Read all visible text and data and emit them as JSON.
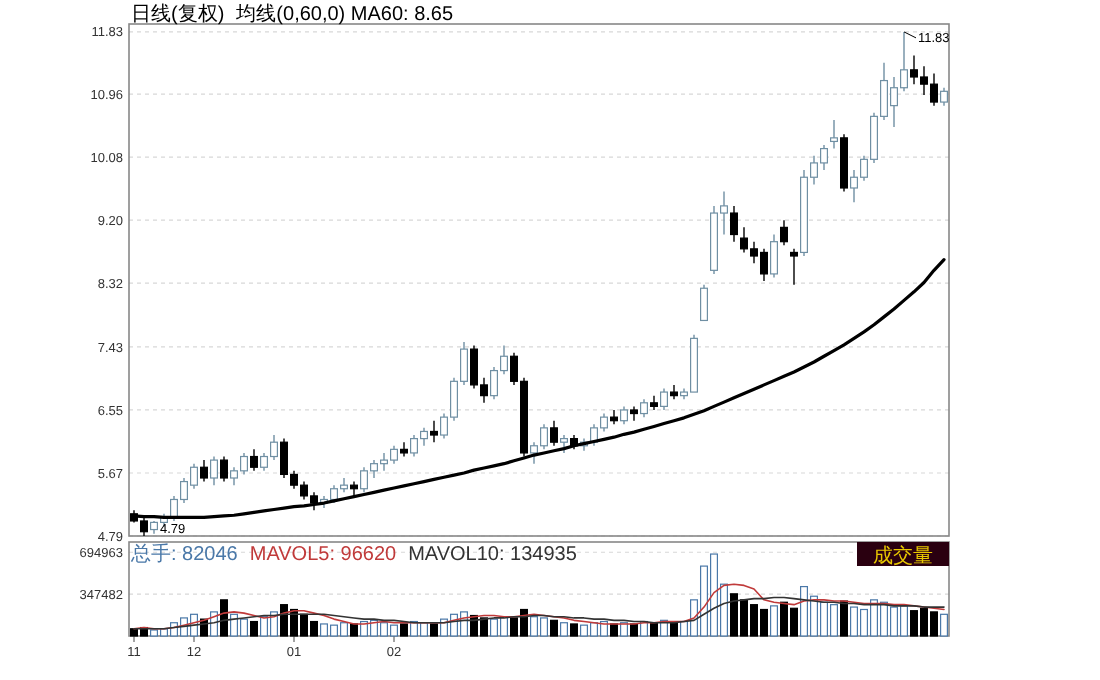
{
  "chart_data": [
    {
      "type": "candlestick",
      "title": "日线(复权)",
      "legend": "top left",
      "grid": "y",
      "tick_labels": "y",
      "categories": [
        null,
        null,
        null,
        null,
        null,
        null,
        null,
        null,
        null,
        null,
        null,
        null,
        null,
        null,
        null,
        null,
        null,
        null,
        null,
        null,
        null,
        null,
        null,
        null,
        null,
        null,
        null,
        null,
        null,
        null,
        null,
        null,
        null,
        null,
        null,
        null,
        null,
        null,
        null,
        null,
        null,
        null,
        null,
        null,
        null,
        null,
        null,
        null,
        null,
        null,
        null,
        null,
        null,
        null,
        null,
        null,
        null,
        null,
        null,
        null,
        null,
        null,
        null,
        null,
        null,
        null,
        null,
        null,
        null,
        null,
        null,
        null,
        null,
        null,
        null,
        null,
        null,
        null,
        null,
        null,
        null,
        null
      ],
      "ylim": [
        4.79,
        11.94
      ],
      "yticks": [
        4.79,
        5.67,
        6.55,
        7.43,
        8.32,
        {
          "value": 9.2,
          "label": "9.20"
        },
        10.08,
        10.96,
        11.83
      ],
      "ohlc": [
        [
          5.1,
          5.15,
          4.98,
          5.0
        ],
        [
          5.0,
          5.05,
          4.79,
          4.85
        ],
        [
          4.88,
          5.0,
          4.82,
          4.98
        ],
        [
          4.98,
          5.1,
          4.92,
          5.05
        ],
        [
          5.05,
          5.35,
          5.0,
          5.3
        ],
        [
          5.3,
          5.6,
          5.25,
          5.55
        ],
        [
          5.5,
          5.8,
          5.45,
          5.75
        ],
        [
          5.75,
          5.85,
          5.55,
          5.6
        ],
        [
          5.6,
          5.9,
          5.5,
          5.85
        ],
        [
          5.85,
          5.9,
          5.55,
          5.6
        ],
        [
          5.6,
          5.75,
          5.5,
          5.7
        ],
        [
          5.7,
          5.95,
          5.65,
          5.9
        ],
        [
          5.9,
          6.0,
          5.7,
          5.75
        ],
        [
          5.75,
          5.95,
          5.7,
          5.9
        ],
        [
          5.9,
          6.2,
          5.85,
          6.1
        ],
        [
          6.1,
          6.15,
          5.6,
          5.65
        ],
        [
          5.65,
          5.7,
          5.45,
          5.5
        ],
        [
          5.5,
          5.55,
          5.3,
          5.35
        ],
        [
          5.35,
          5.4,
          5.15,
          5.25
        ],
        [
          5.25,
          5.35,
          5.18,
          5.3
        ],
        [
          5.3,
          5.5,
          5.25,
          5.45
        ],
        [
          5.45,
          5.6,
          5.4,
          5.5
        ],
        [
          5.5,
          5.55,
          5.35,
          5.45
        ],
        [
          5.45,
          5.75,
          5.4,
          5.7
        ],
        [
          5.7,
          5.85,
          5.6,
          5.8
        ],
        [
          5.8,
          5.95,
          5.7,
          5.85
        ],
        [
          5.85,
          6.05,
          5.8,
          6.0
        ],
        [
          6.0,
          6.1,
          5.9,
          5.95
        ],
        [
          5.95,
          6.2,
          5.9,
          6.15
        ],
        [
          6.15,
          6.3,
          6.05,
          6.25
        ],
        [
          6.25,
          6.4,
          6.1,
          6.2
        ],
        [
          6.2,
          6.5,
          6.15,
          6.45
        ],
        [
          6.45,
          7.0,
          6.4,
          6.95
        ],
        [
          6.95,
          7.5,
          6.9,
          7.4
        ],
        [
          7.4,
          7.45,
          6.85,
          6.9
        ],
        [
          6.9,
          7.0,
          6.65,
          6.75
        ],
        [
          6.75,
          7.15,
          6.7,
          7.1
        ],
        [
          7.1,
          7.45,
          7.05,
          7.3
        ],
        [
          7.3,
          7.35,
          6.9,
          6.95
        ],
        [
          6.95,
          7.0,
          5.9,
          5.95
        ],
        [
          5.95,
          6.1,
          5.8,
          6.05
        ],
        [
          6.05,
          6.35,
          6.0,
          6.3
        ],
        [
          6.3,
          6.4,
          6.05,
          6.1
        ],
        [
          6.1,
          6.2,
          5.95,
          6.15
        ],
        [
          6.15,
          6.2,
          6.0,
          6.05
        ],
        [
          6.05,
          6.15,
          5.98,
          6.1
        ],
        [
          6.1,
          6.35,
          6.05,
          6.3
        ],
        [
          6.3,
          6.5,
          6.25,
          6.45
        ],
        [
          6.45,
          6.55,
          6.35,
          6.4
        ],
        [
          6.4,
          6.6,
          6.35,
          6.55
        ],
        [
          6.55,
          6.6,
          6.4,
          6.5
        ],
        [
          6.5,
          6.7,
          6.45,
          6.65
        ],
        [
          6.65,
          6.75,
          6.55,
          6.6
        ],
        [
          6.6,
          6.85,
          6.55,
          6.8
        ],
        [
          6.8,
          6.9,
          6.7,
          6.75
        ],
        [
          6.75,
          6.85,
          6.7,
          6.8
        ],
        [
          6.8,
          7.6,
          6.8,
          7.55
        ],
        [
          7.8,
          8.3,
          7.8,
          8.25
        ],
        [
          8.5,
          9.4,
          8.45,
          9.3
        ],
        [
          9.3,
          9.6,
          9.0,
          9.4
        ],
        [
          9.3,
          9.4,
          8.9,
          9.0
        ],
        [
          8.95,
          9.1,
          8.75,
          8.8
        ],
        [
          8.8,
          8.9,
          8.6,
          8.7
        ],
        [
          8.75,
          8.8,
          8.35,
          8.45
        ],
        [
          8.45,
          9.0,
          8.4,
          8.9
        ],
        [
          9.1,
          9.2,
          8.85,
          8.9
        ],
        [
          8.75,
          8.8,
          8.3,
          8.7
        ],
        [
          8.75,
          9.9,
          8.7,
          9.8
        ],
        [
          9.8,
          10.1,
          9.7,
          10.0
        ],
        [
          10.0,
          10.25,
          9.9,
          10.2
        ],
        [
          10.3,
          10.6,
          10.2,
          10.35
        ],
        [
          10.35,
          10.4,
          9.6,
          9.65
        ],
        [
          9.65,
          9.9,
          9.45,
          9.8
        ],
        [
          9.8,
          10.1,
          9.75,
          10.05
        ],
        [
          10.05,
          10.7,
          10.0,
          10.65
        ],
        [
          10.65,
          11.4,
          10.6,
          11.15
        ],
        [
          10.8,
          11.2,
          10.5,
          11.05
        ],
        [
          11.05,
          11.83,
          11.0,
          11.3
        ],
        [
          11.3,
          11.5,
          11.1,
          11.2
        ],
        [
          11.2,
          11.35,
          10.95,
          11.1
        ],
        [
          11.1,
          11.25,
          10.8,
          10.85
        ],
        [
          10.85,
          11.05,
          10.8,
          11.0
        ]
      ],
      "series": [
        {
          "type": "line",
          "name": "均线(0,60,0) MA60: 8.65",
          "color": "#000000",
          "values": [
            5.07,
            5.06,
            5.06,
            5.05,
            5.05,
            5.05,
            5.05,
            5.05,
            5.06,
            5.07,
            5.08,
            5.1,
            5.12,
            5.14,
            5.16,
            5.18,
            5.2,
            5.21,
            5.23,
            5.25,
            5.28,
            5.31,
            5.34,
            5.37,
            5.4,
            5.43,
            5.46,
            5.49,
            5.52,
            5.55,
            5.58,
            5.61,
            5.64,
            5.67,
            5.71,
            5.74,
            5.77,
            5.8,
            5.84,
            5.88,
            5.92,
            5.95,
            5.98,
            6.01,
            6.05,
            6.08,
            6.11,
            6.14,
            6.17,
            6.21,
            6.24,
            6.28,
            6.32,
            6.36,
            6.4,
            6.44,
            6.49,
            6.54,
            6.6,
            6.66,
            6.72,
            6.78,
            6.84,
            6.9,
            6.96,
            7.02,
            7.08,
            7.15,
            7.22,
            7.3,
            7.38,
            7.46,
            7.55,
            7.64,
            7.74,
            7.85,
            7.96,
            8.08,
            8.2,
            8.33,
            8.5,
            8.65
          ]
        }
      ],
      "annotations": [
        "11.83",
        "4.79"
      ]
    },
    {
      "type": "bar",
      "legend": "top left",
      "grid": "y",
      "categories": [
        "11",
        null,
        null,
        null,
        null,
        null,
        "12",
        null,
        null,
        null,
        null,
        null,
        null,
        null,
        null,
        null,
        "01",
        null,
        null,
        null,
        null,
        null,
        null,
        null,
        null,
        null,
        "02",
        null,
        null,
        null,
        null,
        null,
        null,
        null,
        null,
        null,
        null,
        null,
        null,
        null,
        null,
        null,
        null,
        null,
        null,
        null,
        null,
        null,
        null,
        null,
        null,
        null,
        null,
        null,
        null,
        null,
        null,
        null,
        null,
        null,
        null,
        null,
        null,
        null,
        null,
        null,
        null,
        null,
        null,
        null,
        null,
        null,
        null,
        null,
        null,
        null,
        null,
        null,
        null,
        null,
        null,
        null
      ],
      "ylim": [
        0,
        780000
      ],
      "yticks": [
        347482,
        694963
      ],
      "series": [
        {
          "type": "bar",
          "name": "总手: 82046",
          "color": "#4a78a8",
          "colors": [
            "#000000",
            "#000000",
            "#4a78a8",
            "#4a78a8",
            "#4a78a8",
            "#4a78a8",
            "#4a78a8",
            "#000000",
            "#4a78a8",
            "#000000",
            "#4a78a8",
            "#4a78a8",
            "#000000",
            "#4a78a8",
            "#4a78a8",
            "#000000",
            "#000000",
            "#000000",
            "#000000",
            "#4a78a8",
            "#4a78a8",
            "#4a78a8",
            "#000000",
            "#4a78a8",
            "#4a78a8",
            "#4a78a8",
            "#4a78a8",
            "#000000",
            "#4a78a8",
            "#4a78a8",
            "#000000",
            "#4a78a8",
            "#4a78a8",
            "#4a78a8",
            "#000000",
            "#000000",
            "#4a78a8",
            "#4a78a8",
            "#000000",
            "#000000",
            "#4a78a8",
            "#4a78a8",
            "#000000",
            "#4a78a8",
            "#000000",
            "#4a78a8",
            "#4a78a8",
            "#4a78a8",
            "#000000",
            "#4a78a8",
            "#000000",
            "#4a78a8",
            "#000000",
            "#4a78a8",
            "#000000",
            "#4a78a8",
            "#4a78a8",
            "#4a78a8",
            "#4a78a8",
            "#4a78a8",
            "#000000",
            "#000000",
            "#000000",
            "#000000",
            "#4a78a8",
            "#000000",
            "#000000",
            "#4a78a8",
            "#4a78a8",
            "#4a78a8",
            "#4a78a8",
            "#000000",
            "#4a78a8",
            "#4a78a8",
            "#4a78a8",
            "#4a78a8",
            "#4a78a8",
            "#4a78a8",
            "#000000",
            "#000000",
            "#000000",
            "#4a78a8"
          ],
          "values": [
            60000,
            70000,
            50000,
            60000,
            110000,
            150000,
            180000,
            140000,
            200000,
            300000,
            180000,
            140000,
            120000,
            160000,
            200000,
            260000,
            220000,
            180000,
            120000,
            100000,
            90000,
            110000,
            100000,
            120000,
            130000,
            110000,
            90000,
            100000,
            120000,
            110000,
            100000,
            140000,
            180000,
            200000,
            170000,
            150000,
            140000,
            160000,
            150000,
            220000,
            160000,
            150000,
            130000,
            110000,
            100000,
            90000,
            110000,
            120000,
            100000,
            110000,
            100000,
            120000,
            110000,
            130000,
            110000,
            120000,
            300000,
            580000,
            680000,
            430000,
            350000,
            300000,
            260000,
            220000,
            250000,
            280000,
            230000,
            410000,
            330000,
            280000,
            260000,
            290000,
            240000,
            220000,
            300000,
            280000,
            240000,
            250000,
            210000,
            230000,
            200000,
            180000
          ]
        },
        {
          "type": "line",
          "name": "MAVOL5: 96620",
          "color": "#c03a3a",
          "values": [
            60000,
            70000,
            60000,
            60000,
            70000,
            90000,
            110000,
            130000,
            160000,
            190000,
            200000,
            190000,
            170000,
            150000,
            160000,
            190000,
            210000,
            210000,
            190000,
            170000,
            140000,
            120000,
            100000,
            100000,
            110000,
            120000,
            110000,
            110000,
            110000,
            110000,
            110000,
            110000,
            130000,
            150000,
            160000,
            170000,
            170000,
            160000,
            160000,
            170000,
            180000,
            170000,
            160000,
            150000,
            130000,
            120000,
            110000,
            100000,
            100000,
            100000,
            100000,
            110000,
            110000,
            120000,
            120000,
            120000,
            150000,
            240000,
            360000,
            420000,
            430000,
            420000,
            390000,
            300000,
            280000,
            270000,
            260000,
            290000,
            300000,
            300000,
            290000,
            290000,
            280000,
            270000,
            270000,
            270000,
            260000,
            260000,
            250000,
            240000,
            230000,
            220000
          ]
        },
        {
          "type": "line",
          "name": "MAVOL10: 134935",
          "color": "#333333",
          "values": [
            60000,
            60000,
            60000,
            60000,
            70000,
            80000,
            90000,
            100000,
            110000,
            130000,
            140000,
            150000,
            160000,
            170000,
            170000,
            180000,
            180000,
            180000,
            180000,
            180000,
            170000,
            160000,
            150000,
            140000,
            140000,
            130000,
            130000,
            120000,
            110000,
            110000,
            110000,
            110000,
            120000,
            130000,
            130000,
            140000,
            150000,
            150000,
            160000,
            160000,
            170000,
            170000,
            160000,
            160000,
            150000,
            150000,
            140000,
            140000,
            130000,
            130000,
            120000,
            120000,
            110000,
            110000,
            110000,
            120000,
            130000,
            180000,
            230000,
            270000,
            290000,
            300000,
            310000,
            310000,
            320000,
            320000,
            310000,
            300000,
            290000,
            280000,
            280000,
            270000,
            270000,
            260000,
            260000,
            260000,
            250000,
            250000,
            250000,
            240000,
            240000,
            240000
          ]
        }
      ],
      "annotations": [
        "成交量"
      ]
    }
  ]
}
